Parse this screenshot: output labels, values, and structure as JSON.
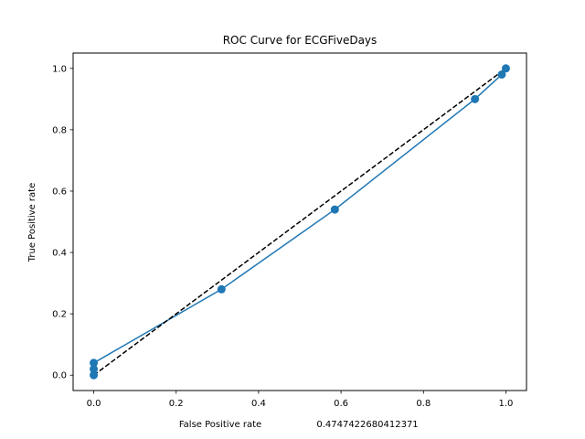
{
  "chart_data": {
    "type": "line",
    "title": "ROC Curve for ECGFiveDays",
    "xlabel": "False Positive rate",
    "xlabel_suffix": "0.4747422680412371",
    "ylabel": "True Positive rate",
    "xlim": [
      -0.05,
      1.05
    ],
    "ylim": [
      -0.05,
      1.05
    ],
    "xticks": [
      0.0,
      0.2,
      0.4,
      0.6,
      0.8,
      1.0
    ],
    "xtick_labels": [
      "0.0",
      "0.2",
      "0.4",
      "0.6",
      "0.8",
      "1.0"
    ],
    "yticks": [
      0.0,
      0.2,
      0.4,
      0.6,
      0.8,
      1.0
    ],
    "ytick_labels": [
      "0.0",
      "0.2",
      "0.4",
      "0.6",
      "0.8",
      "1.0"
    ],
    "grid": false,
    "series": [
      {
        "style": "solid line with circle markers",
        "color": "#1f77b4",
        "x": [
          0.0,
          0.0,
          0.0,
          0.31,
          0.585,
          0.925,
          0.99,
          1.0
        ],
        "y": [
          0.0,
          0.02,
          0.04,
          0.28,
          0.54,
          0.9,
          0.98,
          1.0
        ]
      },
      {
        "style": "dashed line",
        "color": "#000000",
        "x": [
          0.0,
          1.0
        ],
        "y": [
          0.0,
          1.0
        ]
      }
    ]
  }
}
